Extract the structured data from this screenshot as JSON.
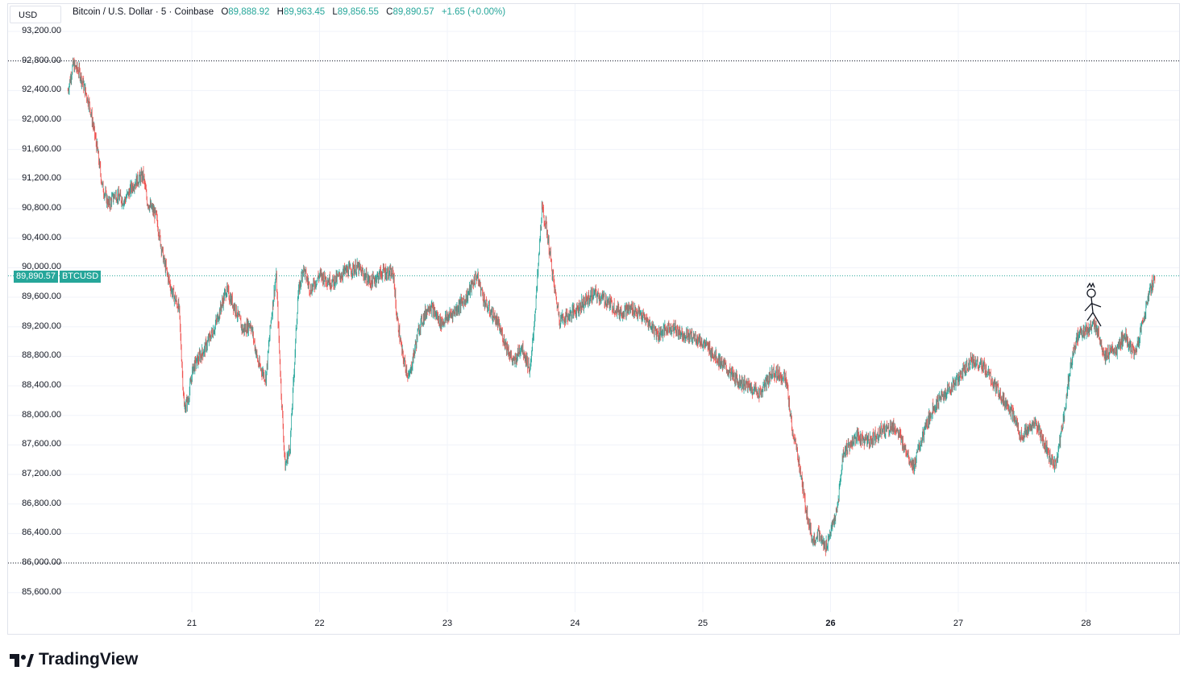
{
  "header": {
    "currency": "USD",
    "symbol": "Bitcoin / U.S. Dollar · 5 · Coinbase",
    "open_label": "O",
    "open": "89,888.92",
    "high_label": "H",
    "high": "89,963.45",
    "low_label": "L",
    "low": "89,856.55",
    "close_label": "C",
    "close": "89,890.57",
    "change": "+1.65 (+0.00%)"
  },
  "last_price": {
    "value": "89,890.57",
    "ticker": "BTCUSD"
  },
  "brand": "TradingView",
  "colors": {
    "up": "#26a69a",
    "down": "#ef5350",
    "grid": "#f0f3fa"
  },
  "chart_data": {
    "type": "line",
    "title": "",
    "interval": "5",
    "y_ticks": [
      "93,200.00",
      "92,800.00",
      "92,400.00",
      "92,000.00",
      "91,600.00",
      "91,200.00",
      "90,800.00",
      "90,400.00",
      "90,000.00",
      "89,600.00",
      "89,200.00",
      "88,800.00",
      "88,400.00",
      "88,000.00",
      "87,600.00",
      "87,200.00",
      "86,800.00",
      "86,400.00",
      "86,000.00",
      "85,600.00"
    ],
    "x_ticks": [
      "21",
      "22",
      "23",
      "24",
      "25",
      "26",
      "27",
      "28"
    ],
    "bold_x_ticks": [
      "26"
    ],
    "ylim": [
      85400,
      93400
    ],
    "xlim": [
      20.0,
      28.7
    ],
    "grid": true,
    "reference_lines": [
      92800,
      86000
    ],
    "last_price": 89890.57,
    "series": [
      {
        "points": [
          [
            20.03,
            92400
          ],
          [
            20.07,
            92750
          ],
          [
            20.12,
            92650
          ],
          [
            20.2,
            92200
          ],
          [
            20.26,
            91600
          ],
          [
            20.3,
            91100
          ],
          [
            20.35,
            90850
          ],
          [
            20.4,
            91000
          ],
          [
            20.47,
            90900
          ],
          [
            20.55,
            91150
          ],
          [
            20.62,
            91250
          ],
          [
            20.65,
            90900
          ],
          [
            20.72,
            90700
          ],
          [
            20.78,
            90100
          ],
          [
            20.84,
            89700
          ],
          [
            20.9,
            89450
          ],
          [
            20.94,
            88100
          ],
          [
            20.97,
            88200
          ],
          [
            21.01,
            88650
          ],
          [
            21.1,
            88900
          ],
          [
            21.18,
            89200
          ],
          [
            21.27,
            89700
          ],
          [
            21.34,
            89450
          ],
          [
            21.4,
            89150
          ],
          [
            21.46,
            89250
          ],
          [
            21.52,
            88700
          ],
          [
            21.58,
            88500
          ],
          [
            21.62,
            89300
          ],
          [
            21.66,
            89900
          ],
          [
            21.7,
            88300
          ],
          [
            21.73,
            87300
          ],
          [
            21.77,
            87600
          ],
          [
            21.8,
            88600
          ],
          [
            21.83,
            89600
          ],
          [
            21.87,
            90000
          ],
          [
            21.93,
            89700
          ],
          [
            22.0,
            89900
          ],
          [
            22.1,
            89800
          ],
          [
            22.2,
            89950
          ],
          [
            22.3,
            90000
          ],
          [
            22.4,
            89800
          ],
          [
            22.5,
            89950
          ],
          [
            22.58,
            89900
          ],
          [
            22.6,
            89400
          ],
          [
            22.65,
            88800
          ],
          [
            22.7,
            88500
          ],
          [
            22.78,
            89200
          ],
          [
            22.86,
            89500
          ],
          [
            22.95,
            89250
          ],
          [
            23.05,
            89400
          ],
          [
            23.15,
            89600
          ],
          [
            23.23,
            89900
          ],
          [
            23.3,
            89500
          ],
          [
            23.38,
            89300
          ],
          [
            23.45,
            89000
          ],
          [
            23.52,
            88700
          ],
          [
            23.58,
            88950
          ],
          [
            23.65,
            88600
          ],
          [
            23.7,
            89700
          ],
          [
            23.74,
            90800
          ],
          [
            23.78,
            90500
          ],
          [
            23.84,
            89700
          ],
          [
            23.88,
            89300
          ],
          [
            23.95,
            89350
          ],
          [
            24.05,
            89500
          ],
          [
            24.15,
            89650
          ],
          [
            24.25,
            89550
          ],
          [
            24.35,
            89400
          ],
          [
            24.45,
            89450
          ],
          [
            24.55,
            89300
          ],
          [
            24.65,
            89100
          ],
          [
            24.75,
            89200
          ],
          [
            24.85,
            89100
          ],
          [
            24.95,
            89050
          ],
          [
            25.05,
            88900
          ],
          [
            25.15,
            88700
          ],
          [
            25.25,
            88500
          ],
          [
            25.35,
            88400
          ],
          [
            25.45,
            88300
          ],
          [
            25.55,
            88600
          ],
          [
            25.65,
            88500
          ],
          [
            25.7,
            87800
          ],
          [
            25.75,
            87400
          ],
          [
            25.8,
            86800
          ],
          [
            25.86,
            86300
          ],
          [
            25.9,
            86400
          ],
          [
            25.96,
            86200
          ],
          [
            26.05,
            86700
          ],
          [
            26.1,
            87500
          ],
          [
            26.2,
            87700
          ],
          [
            26.3,
            87650
          ],
          [
            26.4,
            87800
          ],
          [
            26.5,
            87850
          ],
          [
            26.6,
            87500
          ],
          [
            26.65,
            87300
          ],
          [
            26.7,
            87600
          ],
          [
            26.8,
            88100
          ],
          [
            26.9,
            88300
          ],
          [
            27.0,
            88500
          ],
          [
            27.1,
            88750
          ],
          [
            27.2,
            88650
          ],
          [
            27.3,
            88350
          ],
          [
            27.4,
            88100
          ],
          [
            27.5,
            87700
          ],
          [
            27.6,
            87900
          ],
          [
            27.7,
            87500
          ],
          [
            27.76,
            87300
          ],
          [
            27.82,
            87900
          ],
          [
            27.88,
            88700
          ],
          [
            27.94,
            89100
          ],
          [
            28.0,
            89150
          ],
          [
            28.08,
            89200
          ],
          [
            28.15,
            88800
          ],
          [
            28.25,
            88900
          ],
          [
            28.3,
            89100
          ],
          [
            28.38,
            88800
          ],
          [
            28.45,
            89300
          ],
          [
            28.5,
            89700
          ],
          [
            28.54,
            89890
          ]
        ]
      }
    ]
  }
}
